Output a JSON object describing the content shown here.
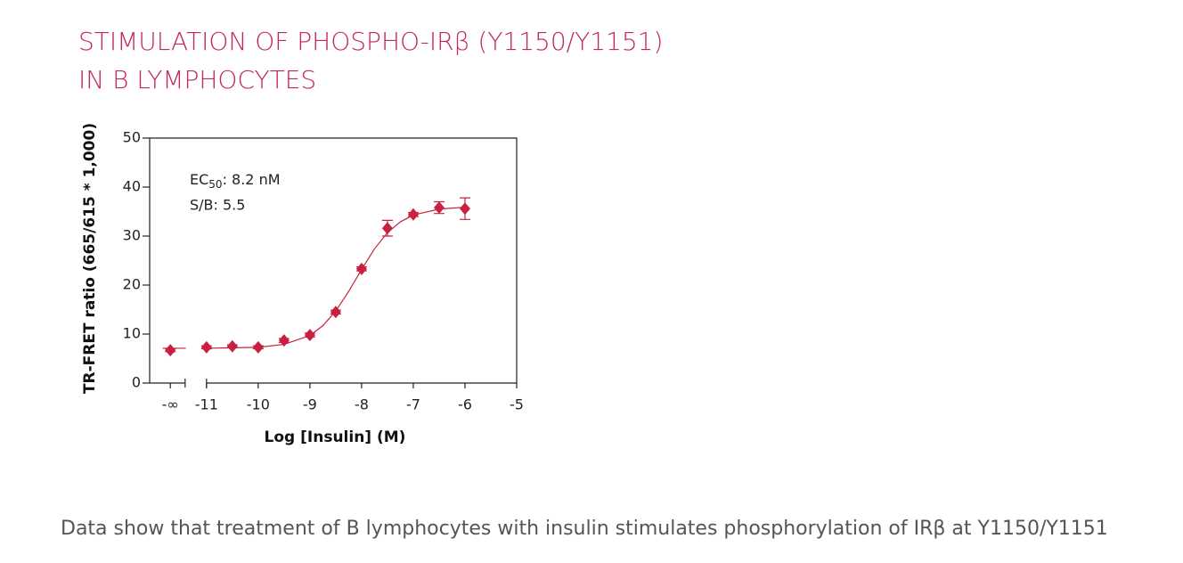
{
  "chart_data": {
    "type": "scatter",
    "title": [
      "STIMULATION OF PHOSPHO-IRβ (Y1150/Y1151)",
      "IN B LYMPHOCYTES"
    ],
    "xlabel": "Log [Insulin] (M)",
    "ylabel": "TR-FRET ratio (665/615 * 1,000)",
    "annotations": {
      "ec": "EC",
      "ec_sub": "50",
      "ec_value": ": 8.2 nM",
      "sb": "S/B: 5.5"
    },
    "xlim": [
      -12.1,
      -5
    ],
    "xticks": [
      {
        "value": -11.7,
        "label": "-∞"
      },
      -11,
      -10,
      -9,
      -8,
      -7,
      -6,
      -5
    ],
    "ylim": [
      0,
      50
    ],
    "yticks": [
      0,
      10,
      20,
      30,
      40,
      50
    ],
    "points": {
      "color": "#c8213f",
      "x": [
        -11.7,
        -11,
        -10.5,
        -10,
        -9.5,
        -9,
        -8.5,
        -8,
        -7.5,
        -7,
        -6.5,
        -6
      ],
      "values": [
        6.7,
        7.3,
        7.5,
        7.3,
        8.7,
        9.8,
        14.5,
        23.3,
        31.6,
        34.4,
        35.8,
        35.6
      ],
      "errors": [
        0.3,
        0.3,
        0.3,
        0.3,
        0.4,
        0.4,
        0.4,
        0.4,
        1.6,
        0.4,
        1.2,
        2.2
      ]
    },
    "fit": {
      "color": "#c8213f",
      "x": [
        -11.85,
        -11.4,
        -11.2,
        -11,
        -10.5,
        -10,
        -9.5,
        -9,
        -8.75,
        -8.5,
        -8.25,
        -8,
        -7.75,
        -7.5,
        -7.25,
        -7,
        -6.5,
        -6
      ],
      "values": [
        7.1,
        7.1,
        null,
        7.1,
        7.2,
        7.3,
        7.9,
        9.7,
        11.7,
        14.7,
        18.7,
        23.2,
        27.4,
        30.7,
        32.9,
        34.3,
        35.5,
        35.9
      ]
    }
  },
  "caption": "Data show that treatment of B lymphocytes with insulin stimulates phosphorylation of IRβ at Y1150/Y1151"
}
